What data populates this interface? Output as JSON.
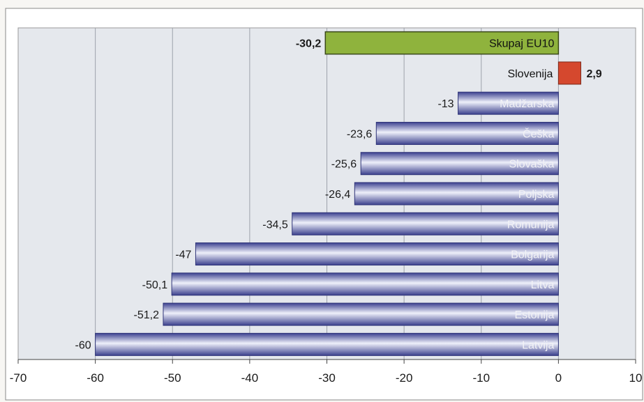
{
  "chart_data": {
    "type": "bar",
    "orientation": "horizontal",
    "title": "",
    "xlabel": "",
    "ylabel": "",
    "xlim": [
      -70,
      10
    ],
    "x_ticks": [
      -70,
      -60,
      -50,
      -40,
      -30,
      -20,
      -10,
      0,
      10
    ],
    "x_tick_labels": [
      "-70",
      "-60",
      "-50",
      "-40",
      "-30",
      "-20",
      "-10",
      "0",
      "10"
    ],
    "grid": "vertical",
    "legend": "none",
    "categories": [
      "Skupaj EU10",
      "Slovenija",
      "Madžarska",
      "Češka",
      "Slovaška",
      "Poljska",
      "Romunija",
      "Bolgarija",
      "Litva",
      "Estonija",
      "Latvija"
    ],
    "values": [
      -30.2,
      2.9,
      -13,
      -23.6,
      -25.6,
      -26.4,
      -34.5,
      -47,
      -50.1,
      -51.2,
      -60
    ],
    "value_labels": [
      "-30,2",
      "2,9",
      "-13",
      "-23,6",
      "-25,6",
      "-26,4",
      "-34,5",
      "-47",
      "-50,1",
      "-51,2",
      "-60"
    ],
    "colors": {
      "bar_default": "#4a4f9c",
      "bar_highlight": "#e6e8f6",
      "total_bar": "#8fb33d",
      "positive_bar": "#d5482e",
      "positive_label": "#c8432b",
      "plot_background": "#e5e8ed"
    }
  }
}
